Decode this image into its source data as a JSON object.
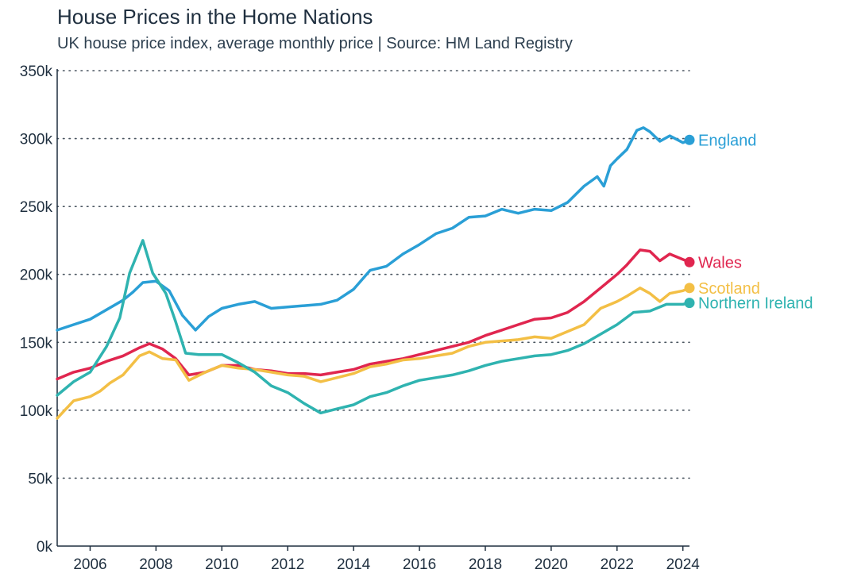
{
  "header": {
    "title": "House Prices in the Home Nations",
    "subtitle": "UK house price index, average monthly price | Source: HM Land Registry"
  },
  "chart_data": {
    "type": "line",
    "title": "House Prices in the Home Nations",
    "subtitle": "UK house price index, average monthly price | Source: HM Land Registry",
    "xlabel": "",
    "ylabel": "",
    "xlim": [
      2005.0,
      2024.2
    ],
    "ylim": [
      0,
      350000
    ],
    "x_ticks": [
      2006,
      2008,
      2010,
      2012,
      2014,
      2016,
      2018,
      2020,
      2022,
      2024
    ],
    "y_ticks": [
      0,
      50000,
      100000,
      150000,
      200000,
      250000,
      300000,
      350000
    ],
    "y_tick_labels": [
      "0k",
      "50k",
      "100k",
      "150k",
      "200k",
      "250k",
      "300k",
      "350k"
    ],
    "grid": "horizontal dotted",
    "legend": "direct labels at line ends (right)",
    "series": [
      {
        "name": "England",
        "color": "#2a9fd6",
        "points": [
          [
            2005.0,
            159000
          ],
          [
            2005.5,
            163000
          ],
          [
            2006.0,
            167000
          ],
          [
            2006.5,
            174000
          ],
          [
            2007.0,
            181000
          ],
          [
            2007.3,
            187000
          ],
          [
            2007.6,
            194000
          ],
          [
            2008.0,
            195000
          ],
          [
            2008.4,
            188000
          ],
          [
            2008.8,
            170000
          ],
          [
            2009.2,
            159000
          ],
          [
            2009.6,
            169000
          ],
          [
            2010.0,
            175000
          ],
          [
            2010.5,
            178000
          ],
          [
            2011.0,
            180000
          ],
          [
            2011.5,
            175000
          ],
          [
            2012.0,
            176000
          ],
          [
            2012.5,
            177000
          ],
          [
            2013.0,
            178000
          ],
          [
            2013.5,
            181000
          ],
          [
            2014.0,
            189000
          ],
          [
            2014.5,
            203000
          ],
          [
            2015.0,
            206000
          ],
          [
            2015.5,
            215000
          ],
          [
            2016.0,
            222000
          ],
          [
            2016.5,
            230000
          ],
          [
            2017.0,
            234000
          ],
          [
            2017.5,
            242000
          ],
          [
            2018.0,
            243000
          ],
          [
            2018.5,
            248000
          ],
          [
            2019.0,
            245000
          ],
          [
            2019.5,
            248000
          ],
          [
            2020.0,
            247000
          ],
          [
            2020.5,
            253000
          ],
          [
            2021.0,
            265000
          ],
          [
            2021.4,
            272000
          ],
          [
            2021.6,
            265000
          ],
          [
            2021.8,
            280000
          ],
          [
            2022.0,
            285000
          ],
          [
            2022.3,
            292000
          ],
          [
            2022.6,
            306000
          ],
          [
            2022.8,
            308000
          ],
          [
            2023.0,
            305000
          ],
          [
            2023.3,
            298000
          ],
          [
            2023.6,
            302000
          ],
          [
            2024.0,
            297000
          ],
          [
            2024.2,
            299000
          ]
        ]
      },
      {
        "name": "Wales",
        "color": "#e0264f",
        "points": [
          [
            2005.0,
            123000
          ],
          [
            2005.5,
            128000
          ],
          [
            2006.0,
            131000
          ],
          [
            2006.5,
            136000
          ],
          [
            2007.0,
            140000
          ],
          [
            2007.5,
            146000
          ],
          [
            2007.8,
            149000
          ],
          [
            2008.2,
            145000
          ],
          [
            2008.6,
            138000
          ],
          [
            2009.0,
            126000
          ],
          [
            2009.5,
            128000
          ],
          [
            2010.0,
            133000
          ],
          [
            2010.5,
            133000
          ],
          [
            2011.0,
            130000
          ],
          [
            2011.5,
            129000
          ],
          [
            2012.0,
            127000
          ],
          [
            2012.5,
            127000
          ],
          [
            2013.0,
            126000
          ],
          [
            2013.5,
            128000
          ],
          [
            2014.0,
            130000
          ],
          [
            2014.5,
            134000
          ],
          [
            2015.0,
            136000
          ],
          [
            2015.5,
            138000
          ],
          [
            2016.0,
            141000
          ],
          [
            2016.5,
            144000
          ],
          [
            2017.0,
            147000
          ],
          [
            2017.5,
            150000
          ],
          [
            2018.0,
            155000
          ],
          [
            2018.5,
            159000
          ],
          [
            2019.0,
            163000
          ],
          [
            2019.5,
            167000
          ],
          [
            2020.0,
            168000
          ],
          [
            2020.5,
            172000
          ],
          [
            2021.0,
            180000
          ],
          [
            2021.5,
            190000
          ],
          [
            2022.0,
            200000
          ],
          [
            2022.3,
            207000
          ],
          [
            2022.7,
            218000
          ],
          [
            2023.0,
            217000
          ],
          [
            2023.3,
            210000
          ],
          [
            2023.6,
            215000
          ],
          [
            2024.0,
            211000
          ],
          [
            2024.2,
            209000
          ]
        ]
      },
      {
        "name": "Scotland",
        "color": "#f3bf45",
        "points": [
          [
            2005.0,
            94000
          ],
          [
            2005.5,
            107000
          ],
          [
            2006.0,
            110000
          ],
          [
            2006.3,
            114000
          ],
          [
            2006.6,
            120000
          ],
          [
            2007.0,
            126000
          ],
          [
            2007.5,
            140000
          ],
          [
            2007.8,
            143000
          ],
          [
            2008.2,
            138000
          ],
          [
            2008.6,
            137000
          ],
          [
            2009.0,
            122000
          ],
          [
            2009.5,
            128000
          ],
          [
            2010.0,
            133000
          ],
          [
            2010.5,
            131000
          ],
          [
            2011.0,
            130000
          ],
          [
            2011.5,
            128000
          ],
          [
            2012.0,
            126000
          ],
          [
            2012.5,
            125000
          ],
          [
            2013.0,
            121000
          ],
          [
            2013.5,
            124000
          ],
          [
            2014.0,
            127000
          ],
          [
            2014.5,
            132000
          ],
          [
            2015.0,
            134000
          ],
          [
            2015.5,
            137000
          ],
          [
            2016.0,
            138000
          ],
          [
            2016.5,
            140000
          ],
          [
            2017.0,
            142000
          ],
          [
            2017.5,
            147000
          ],
          [
            2018.0,
            150000
          ],
          [
            2018.5,
            151000
          ],
          [
            2019.0,
            152000
          ],
          [
            2019.5,
            154000
          ],
          [
            2020.0,
            153000
          ],
          [
            2020.5,
            158000
          ],
          [
            2021.0,
            163000
          ],
          [
            2021.5,
            175000
          ],
          [
            2022.0,
            180000
          ],
          [
            2022.3,
            184000
          ],
          [
            2022.7,
            190000
          ],
          [
            2023.0,
            186000
          ],
          [
            2023.3,
            180000
          ],
          [
            2023.6,
            186000
          ],
          [
            2024.0,
            188000
          ],
          [
            2024.2,
            190000
          ]
        ]
      },
      {
        "name": "Northern Ireland",
        "color": "#2fb3b0",
        "points": [
          [
            2005.0,
            111000
          ],
          [
            2005.5,
            121000
          ],
          [
            2006.0,
            128000
          ],
          [
            2006.5,
            147000
          ],
          [
            2006.9,
            168000
          ],
          [
            2007.2,
            201000
          ],
          [
            2007.6,
            225000
          ],
          [
            2007.9,
            201000
          ],
          [
            2008.3,
            186000
          ],
          [
            2008.6,
            165000
          ],
          [
            2008.9,
            142000
          ],
          [
            2009.3,
            141000
          ],
          [
            2009.6,
            141000
          ],
          [
            2010.0,
            141000
          ],
          [
            2010.5,
            135000
          ],
          [
            2011.0,
            128000
          ],
          [
            2011.5,
            118000
          ],
          [
            2012.0,
            113000
          ],
          [
            2012.5,
            105000
          ],
          [
            2013.0,
            98000
          ],
          [
            2013.5,
            101000
          ],
          [
            2014.0,
            104000
          ],
          [
            2014.5,
            110000
          ],
          [
            2015.0,
            113000
          ],
          [
            2015.5,
            118000
          ],
          [
            2016.0,
            122000
          ],
          [
            2016.5,
            124000
          ],
          [
            2017.0,
            126000
          ],
          [
            2017.5,
            129000
          ],
          [
            2018.0,
            133000
          ],
          [
            2018.5,
            136000
          ],
          [
            2019.0,
            138000
          ],
          [
            2019.5,
            140000
          ],
          [
            2020.0,
            141000
          ],
          [
            2020.5,
            144000
          ],
          [
            2021.0,
            149000
          ],
          [
            2021.5,
            156000
          ],
          [
            2022.0,
            163000
          ],
          [
            2022.5,
            172000
          ],
          [
            2023.0,
            173000
          ],
          [
            2023.5,
            178000
          ],
          [
            2024.0,
            178000
          ],
          [
            2024.2,
            179000
          ]
        ]
      }
    ]
  }
}
